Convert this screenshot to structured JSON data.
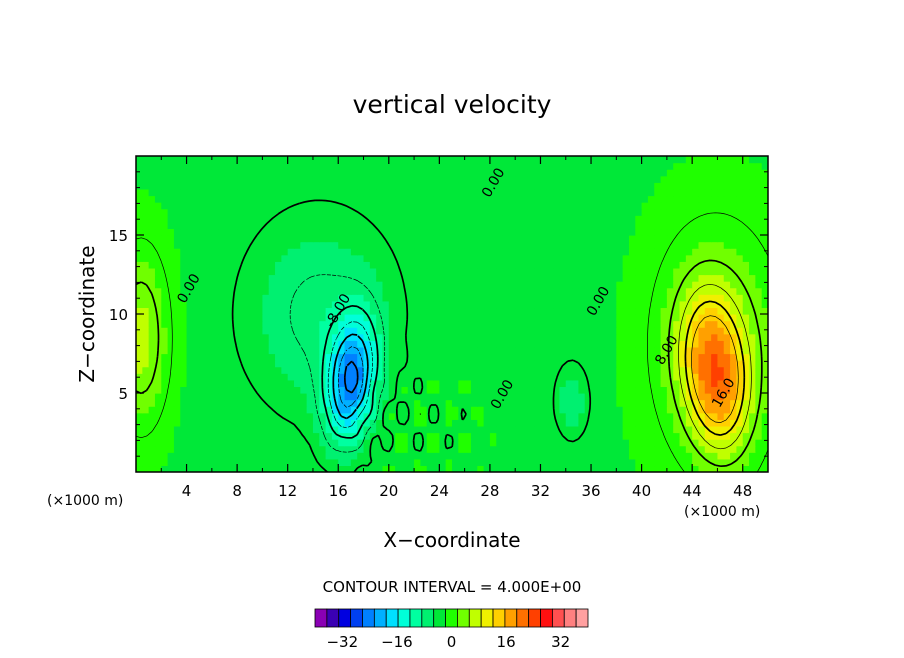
{
  "chart_data": {
    "type": "heatmap",
    "title": "vertical velocity",
    "xlabel": "X−coordinate",
    "ylabel": "Z−coordinate",
    "x_unit_left": "(×1000 m)",
    "x_unit_right": "(×1000 m)",
    "xlim": [
      0,
      50
    ],
    "ylim": [
      0,
      20
    ],
    "x_ticks": [
      4,
      8,
      12,
      16,
      20,
      24,
      28,
      32,
      36,
      40,
      44,
      48
    ],
    "y_ticks": [
      5,
      10,
      15
    ],
    "contour_interval_label": "CONTOUR INTERVAL = 4.000E+00",
    "contour_interval": 4,
    "contour_labels": [
      {
        "text": "0.00",
        "x": 4.2,
        "y": 11.6
      },
      {
        "text": "0.00",
        "x": 28.3,
        "y": 18.3
      },
      {
        "text": "0.00",
        "x": 36.6,
        "y": 10.8
      },
      {
        "text": "0.00",
        "x": 29.0,
        "y": 4.9
      },
      {
        "text": "-8.00",
        "x": 16.0,
        "y": 10.2
      },
      {
        "text": "8.00",
        "x": 42.0,
        "y": 7.7
      },
      {
        "text": "16.0",
        "x": 46.5,
        "y": 5.0
      }
    ],
    "features": [
      {
        "kind": "min",
        "x": 17.0,
        "y": 5.8,
        "value": -26
      },
      {
        "kind": "max",
        "x": 45.8,
        "y": 6.2,
        "value": 20
      },
      {
        "kind": "max",
        "x": 0.4,
        "y": 8.5,
        "value": 10
      }
    ],
    "colorbar": {
      "min": -40,
      "max": 40,
      "tick_labels": [
        "−32",
        "−16",
        "0",
        "16",
        "32"
      ],
      "tick_values": [
        -32,
        -16,
        0,
        16,
        32
      ],
      "colors": [
        "#8a00b4",
        "#3a00b4",
        "#0000e0",
        "#0040f0",
        "#0080ff",
        "#00b0ff",
        "#00e0ff",
        "#00ffd8",
        "#00ffa0",
        "#00f070",
        "#00e838",
        "#20ff00",
        "#70ff00",
        "#c0ff00",
        "#f0f000",
        "#ffd000",
        "#ffa000",
        "#ff7000",
        "#ff4000",
        "#ff1010",
        "#ff5050",
        "#ff8080",
        "#ffa0a0"
      ]
    }
  }
}
